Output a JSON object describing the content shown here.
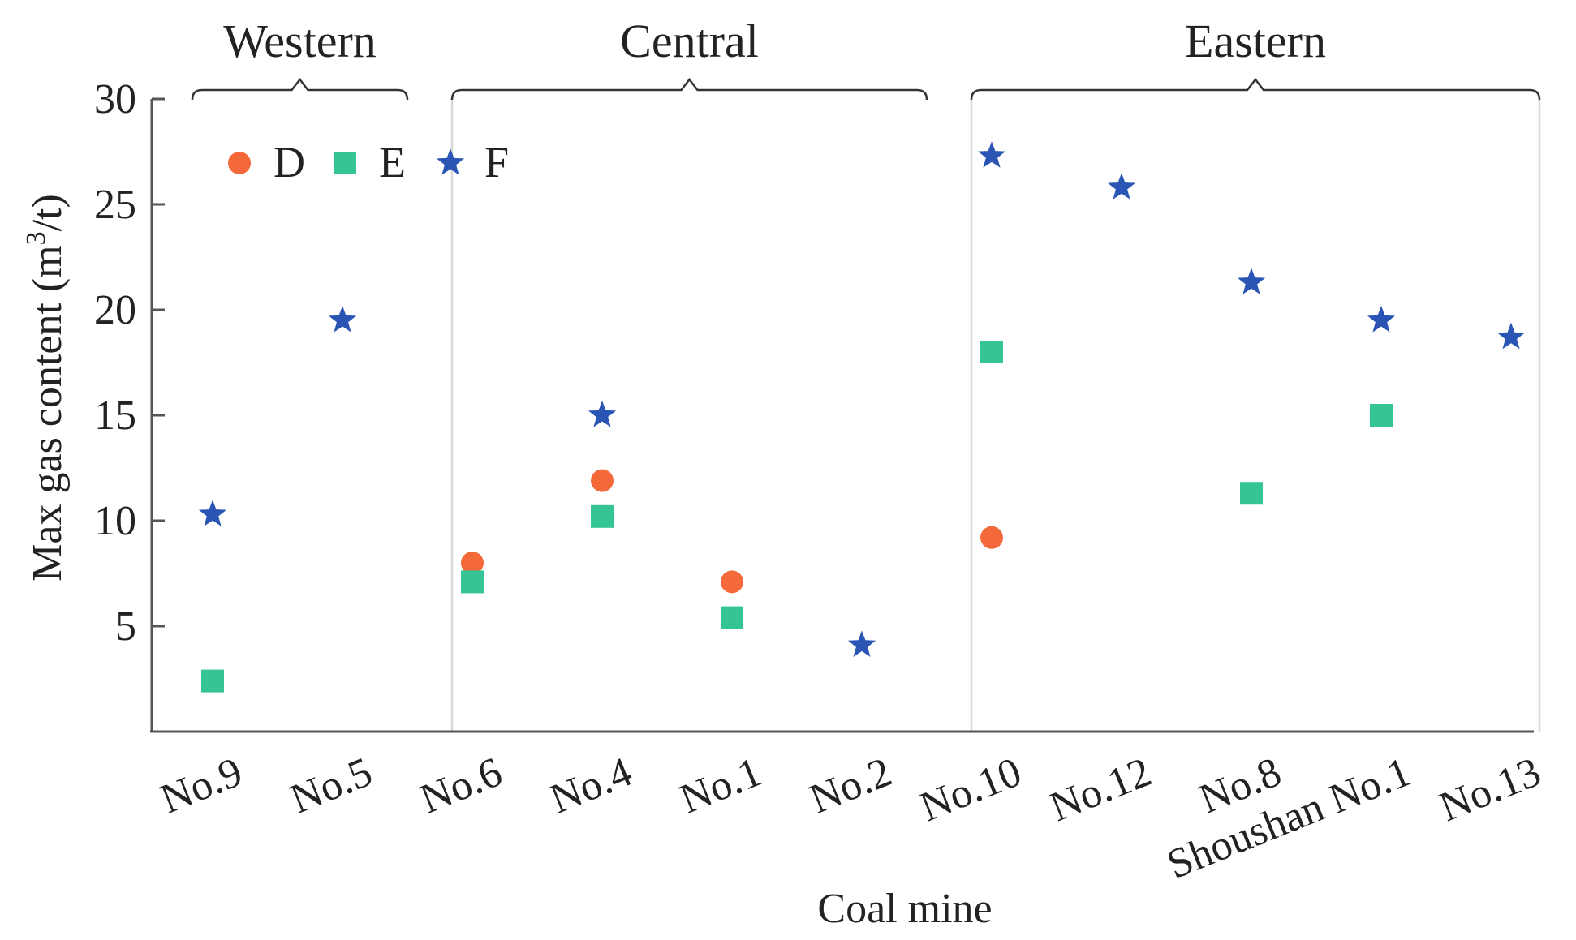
{
  "chart_data": {
    "type": "scatter",
    "xlabel": "Coal mine",
    "ylabel": "Max gas content (m³/t)",
    "ylabel_parts": {
      "before": "Max gas content (m",
      "sup": "3",
      "after": "/t)"
    },
    "categories": [
      "No.9",
      "No.5",
      "No.6",
      "No.4",
      "No.1",
      "No.2",
      "No.10",
      "No.12",
      "No.8",
      "Shoushan No.1",
      "No.13"
    ],
    "ylim": [
      0,
      30
    ],
    "yticks": [
      5,
      10,
      15,
      20,
      25,
      30
    ],
    "grid": false,
    "legend_position": "top-left",
    "regions": [
      {
        "label": "Western",
        "start": 0,
        "end": 1
      },
      {
        "label": "Central",
        "start": 2,
        "end": 5
      },
      {
        "label": "Eastern",
        "start": 6,
        "end": 10
      }
    ],
    "series": [
      {
        "name": "D",
        "marker": "circle",
        "color": "#f4693a",
        "values": [
          null,
          null,
          8.0,
          11.9,
          7.1,
          null,
          9.2,
          null,
          null,
          null,
          null
        ]
      },
      {
        "name": "E",
        "marker": "square",
        "color": "#35c496",
        "values": [
          2.4,
          null,
          7.1,
          10.2,
          5.4,
          null,
          18.0,
          null,
          11.3,
          15.0,
          null
        ]
      },
      {
        "name": "F",
        "marker": "star",
        "color": "#2a55b4",
        "values": [
          10.3,
          19.5,
          null,
          15.0,
          null,
          4.1,
          27.3,
          25.8,
          21.3,
          19.5,
          18.7
        ]
      }
    ]
  }
}
